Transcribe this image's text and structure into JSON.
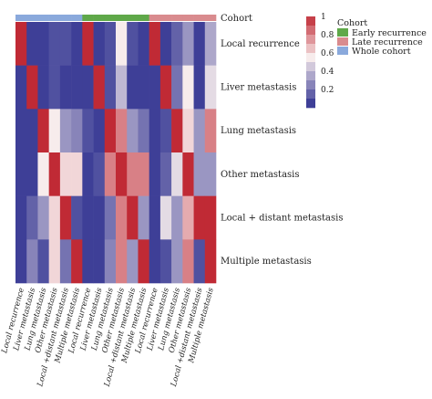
{
  "chart_data": {
    "type": "heatmap",
    "annotation_row_label": "Cohort",
    "rows": [
      "Local recurrence",
      "Liver metastasis",
      "Lung metastasis",
      "Other metastasis",
      "Local + distant metastasis",
      "Multiple metastasis"
    ],
    "columns": [
      "Local recurrence",
      "Liver metastasis",
      "Lung metastasis",
      "Other metastasis",
      "Local +distant metastasis",
      "Multiple metastasis",
      "Local recurrence",
      "Liver metastasis",
      "Lung metastasis",
      "Other metastasis",
      "Local +distant metastasis",
      "Multiple metastasis",
      "Local recurrence",
      "Liver metastasis",
      "Lung metastasis",
      "Other metastasis",
      "Local +distant metastasis",
      "Multiple metastasis"
    ],
    "column_cohorts": [
      "Whole cohort",
      "Whole cohort",
      "Whole cohort",
      "Whole cohort",
      "Whole cohort",
      "Whole cohort",
      "Early recurrence",
      "Early recurrence",
      "Early recurrence",
      "Early recurrence",
      "Early recurrence",
      "Early recurrence",
      "Late recurrence",
      "Late recurrence",
      "Late recurrence",
      "Late recurrence",
      "Late recurrence",
      "Late recurrence"
    ],
    "values": [
      [
        1.0,
        0.05,
        0.05,
        0.1,
        0.1,
        0.05,
        1.0,
        0.05,
        0.1,
        0.55,
        0.1,
        0.05,
        1.0,
        0.05,
        0.15,
        0.3,
        0.05,
        0.35
      ],
      [
        0.05,
        1.0,
        0.05,
        0.1,
        0.05,
        0.05,
        0.05,
        1.0,
        0.1,
        0.4,
        0.05,
        0.05,
        0.05,
        1.0,
        0.2,
        0.55,
        0.05,
        0.5
      ],
      [
        0.05,
        0.05,
        1.0,
        0.55,
        0.3,
        0.25,
        0.1,
        0.05,
        1.0,
        0.8,
        0.3,
        0.2,
        0.05,
        0.1,
        1.0,
        0.6,
        0.3,
        0.8
      ],
      [
        0.05,
        0.05,
        0.55,
        1.0,
        0.6,
        0.6,
        0.05,
        0.1,
        0.8,
        1.0,
        0.8,
        0.8,
        0.05,
        0.15,
        0.5,
        1.0,
        0.3,
        0.3
      ],
      [
        0.05,
        0.15,
        0.3,
        0.6,
        1.0,
        0.1,
        0.05,
        0.05,
        0.2,
        0.8,
        1.0,
        0.3,
        0.05,
        0.5,
        0.3,
        0.7,
        1.0,
        1.0
      ],
      [
        0.05,
        0.25,
        0.1,
        0.6,
        0.2,
        1.0,
        0.05,
        0.05,
        0.25,
        0.8,
        0.3,
        1.0,
        0.05,
        0.1,
        0.3,
        0.8,
        0.1,
        1.0
      ]
    ],
    "color_scale": {
      "ticks": [
        "1",
        "0.8",
        "0.6",
        "0.4",
        "0.2"
      ],
      "low_color": "#2b2e8f",
      "mid_color": "#f7ecec",
      "high_color": "#c02a35"
    },
    "legend": {
      "title": "Cohort",
      "items": [
        {
          "label": "Early recurrence",
          "color": "#5fa849"
        },
        {
          "label": "Late recurrence",
          "color": "#d98b8e"
        },
        {
          "label": "Whole cohort",
          "color": "#8aa9dc"
        }
      ]
    }
  }
}
